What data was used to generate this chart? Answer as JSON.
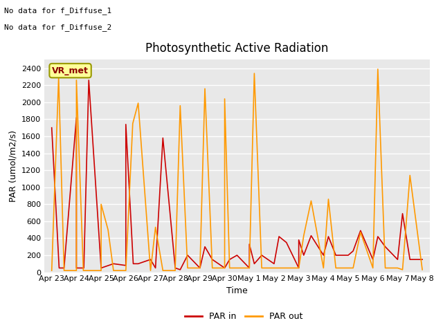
{
  "title": "Photosynthetic Active Radiation",
  "ylabel": "PAR (umol/m2/s)",
  "xlabel": "Time",
  "note_line1": "No data for f_Diffuse_1",
  "note_line2": "No data for f_Diffuse_2",
  "vr_met_label": "VR_met",
  "legend_par_in": "PAR in",
  "legend_par_out": "PAR out",
  "color_par_in": "#cc0000",
  "color_par_out": "#ff9900",
  "plot_bg_color": "#e8e8e8",
  "fig_bg_color": "#ffffff",
  "ylim": [
    0,
    2500
  ],
  "yticks": [
    0,
    200,
    400,
    600,
    800,
    1000,
    1200,
    1400,
    1600,
    1800,
    2000,
    2200,
    2400
  ],
  "xtick_labels": [
    "Apr 23",
    "Apr 24",
    "Apr 25",
    "Apr 26",
    "Apr 27",
    "Apr 28",
    "Apr 29",
    "Apr 30",
    "May 1",
    "May 2",
    "May 3",
    "May 4",
    "May 5",
    "May 6",
    "May 7",
    "May 8"
  ],
  "par_in_x": [
    0,
    0.3,
    0.5,
    1,
    1.0,
    1.3,
    1.5,
    2,
    2.0,
    2.3,
    2.5,
    3,
    3.0,
    3.3,
    3.5,
    4,
    4.0,
    4.2,
    4.5,
    5,
    5.0,
    5.2,
    5.5,
    6,
    6.0,
    6.2,
    6.5,
    7,
    7.0,
    7.2,
    7.5,
    8,
    8.0,
    8.2,
    8.5,
    9,
    9.0,
    9.2,
    9.5,
    10,
    10.0,
    10.2,
    10.5,
    11,
    11.0,
    11.2,
    11.5,
    12,
    12.0,
    12.2,
    12.5,
    13,
    13.0,
    13.2,
    13.5,
    14,
    14.0,
    14.2,
    14.5,
    15
  ],
  "par_in_y": [
    1700,
    50,
    50,
    1820,
    50,
    50,
    2260,
    50,
    50,
    80,
    100,
    80,
    1740,
    100,
    100,
    150,
    150,
    50,
    1580,
    50,
    50,
    30,
    200,
    50,
    50,
    300,
    150,
    50,
    50,
    150,
    200,
    50,
    330,
    100,
    200,
    100,
    100,
    420,
    350,
    50,
    380,
    200,
    430,
    200,
    200,
    420,
    200,
    200,
    200,
    250,
    490,
    150,
    150,
    420,
    300,
    150,
    150,
    690,
    150,
    150
  ],
  "par_out_x": [
    0,
    0.28,
    0.5,
    1,
    1.0,
    1.28,
    1.5,
    2,
    2.0,
    2.28,
    2.5,
    3,
    3.0,
    3.28,
    3.5,
    4,
    4.0,
    4.2,
    4.5,
    5,
    5.0,
    5.2,
    5.5,
    6,
    6.0,
    6.2,
    6.5,
    7,
    7.0,
    7.2,
    7.5,
    8,
    8.0,
    8.2,
    8.5,
    9,
    9.0,
    9.2,
    9.5,
    10,
    10.0,
    10.2,
    10.5,
    11,
    11.0,
    11.2,
    11.5,
    12,
    12.0,
    12.2,
    12.5,
    13,
    13.0,
    13.2,
    13.5,
    14,
    14.0,
    14.2,
    14.5,
    15
  ],
  "par_out_y": [
    20,
    2290,
    20,
    20,
    2260,
    20,
    20,
    20,
    800,
    500,
    20,
    20,
    20,
    1750,
    1990,
    20,
    20,
    530,
    20,
    20,
    50,
    1960,
    50,
    50,
    50,
    2160,
    50,
    50,
    2040,
    50,
    50,
    50,
    50,
    2340,
    50,
    50,
    50,
    50,
    50,
    50,
    50,
    430,
    840,
    50,
    50,
    860,
    50,
    50,
    50,
    50,
    470,
    50,
    50,
    2390,
    50,
    50,
    50,
    30,
    1140,
    30
  ],
  "title_fontsize": 12,
  "tick_fontsize": 8,
  "ylabel_fontsize": 9,
  "xlabel_fontsize": 9,
  "note_fontsize": 8,
  "vrmet_fontsize": 9
}
